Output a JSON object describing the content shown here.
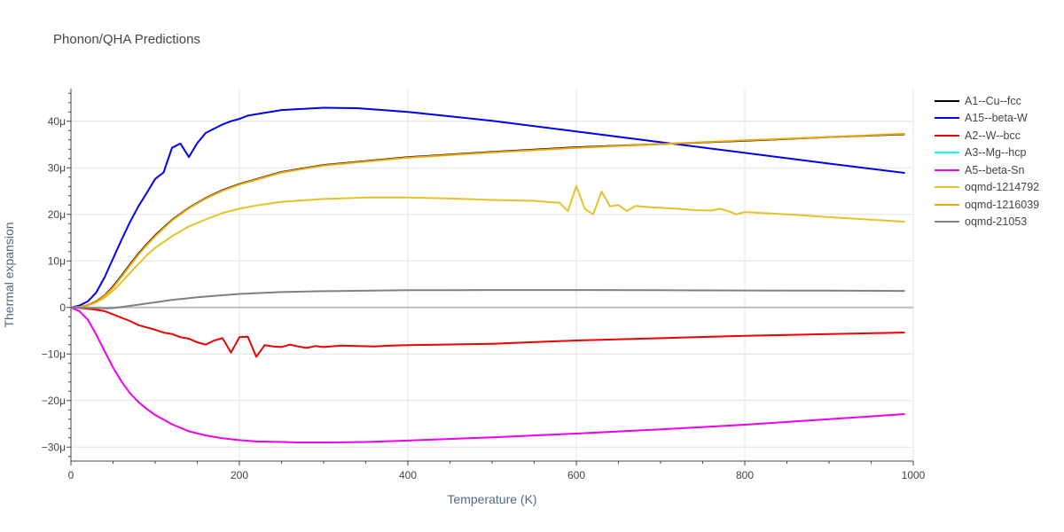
{
  "chart_data": {
    "type": "line",
    "title": "Phonon/QHA Predictions",
    "xlabel": "Temperature (K)",
    "ylabel": "Thermal expansion",
    "xlim": [
      0,
      1000
    ],
    "ylim": [
      -3.3e-05,
      4.7e-05
    ],
    "x_ticks": [
      {
        "v": 0,
        "label": "0"
      },
      {
        "v": 200,
        "label": "200"
      },
      {
        "v": 400,
        "label": "400"
      },
      {
        "v": 600,
        "label": "600"
      },
      {
        "v": 800,
        "label": "800"
      },
      {
        "v": 1000,
        "label": "1000"
      }
    ],
    "y_ticks": [
      {
        "v": -3e-05,
        "label": "−30μ"
      },
      {
        "v": -2e-05,
        "label": "−20μ"
      },
      {
        "v": -1e-05,
        "label": "−10μ"
      },
      {
        "v": 0,
        "label": "0"
      },
      {
        "v": 1e-05,
        "label": "10μ"
      },
      {
        "v": 2e-05,
        "label": "20μ"
      },
      {
        "v": 3e-05,
        "label": "30μ"
      },
      {
        "v": 4e-05,
        "label": "40μ"
      }
    ],
    "grid": true,
    "legend_position": "right",
    "series": [
      {
        "name": "A1--Cu--fcc",
        "color": "#000000",
        "x": [
          0,
          10,
          20,
          30,
          40,
          50,
          60,
          70,
          80,
          90,
          100,
          120,
          140,
          160,
          180,
          200,
          250,
          300,
          400,
          500,
          600,
          700,
          800,
          900,
          990
        ],
        "y": [
          0,
          1e-07,
          5e-07,
          1.3e-06,
          2.6e-06,
          4.5e-06,
          6.8e-06,
          9.2e-06,
          1.15e-05,
          1.36e-05,
          1.55e-05,
          1.88e-05,
          2.14e-05,
          2.35e-05,
          2.52e-05,
          2.65e-05,
          2.91e-05,
          3.06e-05,
          3.23e-05,
          3.34e-05,
          3.44e-05,
          3.51e-05,
          3.58e-05,
          3.66e-05,
          3.72e-05
        ]
      },
      {
        "name": "A15--beta-W",
        "color": "#0000ee",
        "x": [
          0,
          10,
          20,
          30,
          40,
          50,
          60,
          70,
          80,
          90,
          100,
          110,
          120,
          130,
          140,
          150,
          160,
          180,
          190,
          200,
          210,
          250,
          300,
          340,
          400,
          500,
          600,
          700,
          800,
          900,
          990
        ],
        "y": [
          0,
          4e-07,
          1.3e-06,
          3.2e-06,
          6.5e-06,
          1.05e-05,
          1.45e-05,
          1.83e-05,
          2.17e-05,
          2.46e-05,
          2.76e-05,
          2.9e-05,
          3.43e-05,
          3.52e-05,
          3.23e-05,
          3.53e-05,
          3.75e-05,
          3.93e-05,
          4e-05,
          4.05e-05,
          4.12e-05,
          4.24e-05,
          4.29e-05,
          4.28e-05,
          4.2e-05,
          4.01e-05,
          3.78e-05,
          3.55e-05,
          3.32e-05,
          3.09e-05,
          2.89e-05
        ]
      },
      {
        "name": "A2--W--bcc",
        "color": "#ee0000",
        "x": [
          0,
          10,
          20,
          30,
          40,
          50,
          60,
          70,
          80,
          90,
          100,
          110,
          120,
          130,
          140,
          150,
          160,
          170,
          180,
          190,
          200,
          210,
          220,
          230,
          240,
          250,
          260,
          270,
          280,
          290,
          300,
          320,
          340,
          360,
          380,
          400,
          500,
          600,
          700,
          800,
          900,
          990
        ],
        "y": [
          0,
          -1e-07,
          -3e-07,
          -5e-07,
          -8e-07,
          -1.5e-06,
          -2.2e-06,
          -2.9e-06,
          -3.8e-06,
          -4.3e-06,
          -4.8e-06,
          -5.4e-06,
          -5.7e-06,
          -6.4e-06,
          -6.7e-06,
          -7.5e-06,
          -8e-06,
          -7.1e-06,
          -6.6e-06,
          -9.7e-06,
          -6.4e-06,
          -6.3e-06,
          -1.06e-05,
          -8.1e-06,
          -8.4e-06,
          -8.5e-06,
          -8e-06,
          -8.4e-06,
          -8.7e-06,
          -8.3e-06,
          -8.5e-06,
          -8.2e-06,
          -8.3e-06,
          -8.4e-06,
          -8.2e-06,
          -8.1e-06,
          -7.8e-06,
          -7.1e-06,
          -6.6e-06,
          -6.1e-06,
          -5.7e-06,
          -5.4e-06
        ]
      },
      {
        "name": "A3--Mg--hcp",
        "color": "#00ffff",
        "x": [],
        "y": []
      },
      {
        "name": "A5--beta-Sn",
        "color": "#ee00ee",
        "x": [
          0,
          10,
          20,
          30,
          40,
          50,
          60,
          70,
          80,
          90,
          100,
          120,
          140,
          160,
          180,
          200,
          220,
          250,
          270,
          300,
          350,
          400,
          500,
          600,
          700,
          800,
          900,
          990
        ],
        "y": [
          0,
          -8e-07,
          -2.6e-06,
          -5.8e-06,
          -9.4e-06,
          -1.29e-05,
          -1.59e-05,
          -1.84e-05,
          -2.03e-05,
          -2.18e-05,
          -2.31e-05,
          -2.51e-05,
          -2.66e-05,
          -2.75e-05,
          -2.81e-05,
          -2.85e-05,
          -2.88e-05,
          -2.89e-05,
          -2.9e-05,
          -2.9e-05,
          -2.89e-05,
          -2.86e-05,
          -2.79e-05,
          -2.71e-05,
          -2.62e-05,
          -2.52e-05,
          -2.4e-05,
          -2.29e-05
        ]
      },
      {
        "name": "oqmd-1214792",
        "color": "#e6c229",
        "x": [
          0,
          10,
          20,
          30,
          40,
          50,
          60,
          70,
          80,
          90,
          100,
          120,
          140,
          160,
          180,
          200,
          220,
          250,
          300,
          350,
          400,
          450,
          500,
          550,
          570,
          580,
          590,
          600,
          610,
          620,
          630,
          640,
          650,
          660,
          670,
          690,
          700,
          720,
          740,
          760,
          770,
          780,
          790,
          800,
          850,
          900,
          990
        ],
        "y": [
          0,
          1e-07,
          4e-07,
          1.1e-06,
          2.1e-06,
          3.6e-06,
          5.4e-06,
          7.4e-06,
          9.3e-06,
          1.12e-05,
          1.28e-05,
          1.53e-05,
          1.74e-05,
          1.89e-05,
          2.03e-05,
          2.12e-05,
          2.19e-05,
          2.27e-05,
          2.33e-05,
          2.36e-05,
          2.36e-05,
          2.34e-05,
          2.31e-05,
          2.29e-05,
          2.26e-05,
          2.25e-05,
          2.07e-05,
          2.61e-05,
          2.12e-05,
          2e-05,
          2.49e-05,
          2.17e-05,
          2.2e-05,
          2.07e-05,
          2.18e-05,
          2.15e-05,
          2.14e-05,
          2.12e-05,
          2.09e-05,
          2.08e-05,
          2.12e-05,
          2.07e-05,
          2e-05,
          2.05e-05,
          2e-05,
          1.94e-05,
          1.84e-05
        ]
      },
      {
        "name": "oqmd-1216039",
        "color": "#f0a30a",
        "x": [
          0,
          10,
          20,
          30,
          40,
          50,
          60,
          70,
          80,
          90,
          100,
          120,
          140,
          160,
          180,
          200,
          250,
          300,
          400,
          500,
          600,
          700,
          800,
          900,
          990
        ],
        "y": [
          0,
          1e-07,
          5e-07,
          1.2e-06,
          2.5e-06,
          4.3e-06,
          6.6e-06,
          9e-06,
          1.13e-05,
          1.34e-05,
          1.53e-05,
          1.87e-05,
          2.13e-05,
          2.34e-05,
          2.51e-05,
          2.64e-05,
          2.9e-05,
          3.05e-05,
          3.22e-05,
          3.33e-05,
          3.43e-05,
          3.51e-05,
          3.59e-05,
          3.66e-05,
          3.73e-05
        ]
      },
      {
        "name": "oqmd-21053",
        "color": "#808080",
        "x": [
          0,
          20,
          40,
          50,
          60,
          80,
          100,
          120,
          150,
          200,
          250,
          300,
          400,
          500,
          550,
          600,
          700,
          800,
          900,
          990
        ],
        "y": [
          0,
          -1e-07,
          -2e-07,
          -1.5e-07,
          1e-07,
          6e-07,
          1.1e-06,
          1.6e-06,
          2.2e-06,
          2.9e-06,
          3.3e-06,
          3.5e-06,
          3.7e-06,
          3.75e-06,
          3.75e-06,
          3.75e-06,
          3.7e-06,
          3.65e-06,
          3.6e-06,
          3.55e-06
        ]
      }
    ]
  }
}
